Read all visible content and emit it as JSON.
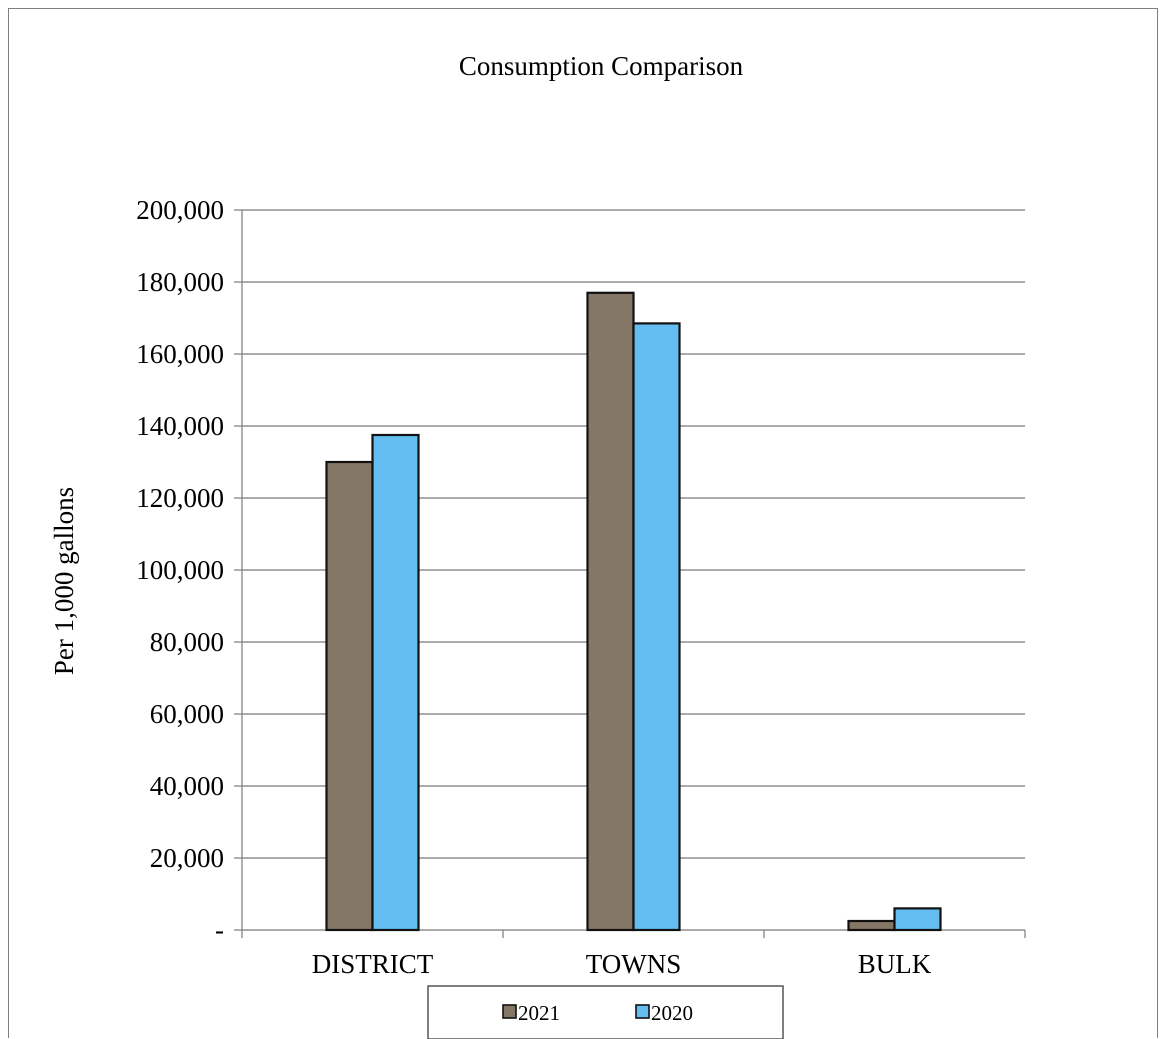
{
  "chart_data": {
    "type": "bar",
    "title": "Consumption Comparison",
    "xlabel": "",
    "ylabel": "Per 1,000 gallons",
    "categories": [
      "DISTRICT",
      "TOWNS",
      "BULK"
    ],
    "series": [
      {
        "name": "2021",
        "values": [
          130000,
          177000,
          2500
        ],
        "color": "#857766"
      },
      {
        "name": "2020",
        "values": [
          137500,
          168500,
          6000
        ],
        "color": "#63bdf0"
      }
    ],
    "ylim": [
      0,
      200000
    ],
    "yticks": [
      {
        "value": 0,
        "label": "-"
      },
      {
        "value": 20000,
        "label": "20,000"
      },
      {
        "value": 40000,
        "label": "40,000"
      },
      {
        "value": 60000,
        "label": "60,000"
      },
      {
        "value": 80000,
        "label": "80,000"
      },
      {
        "value": 100000,
        "label": "100,000"
      },
      {
        "value": 120000,
        "label": "120,000"
      },
      {
        "value": 140000,
        "label": "140,000"
      },
      {
        "value": 160000,
        "label": "160,000"
      },
      {
        "value": 180000,
        "label": "180,000"
      },
      {
        "value": 200000,
        "label": "200,000"
      }
    ],
    "grid": true,
    "legend_position": "bottom"
  }
}
